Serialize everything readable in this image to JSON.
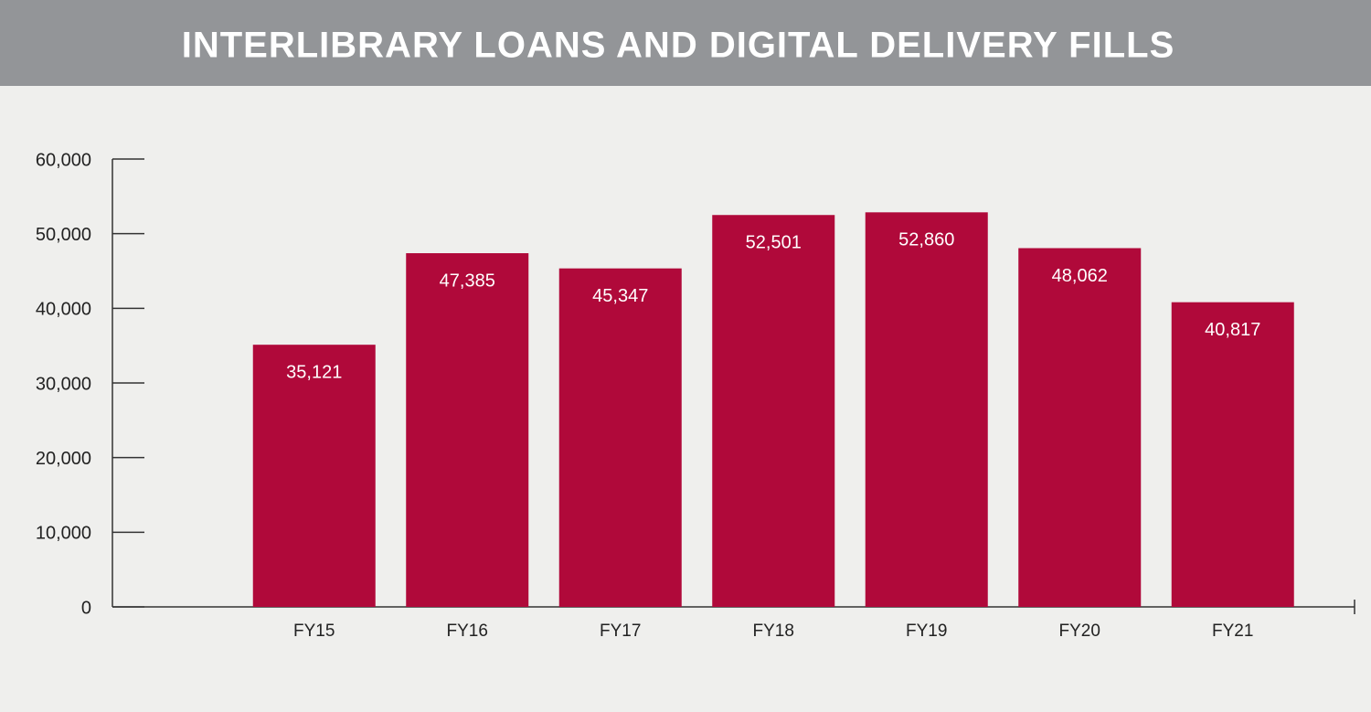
{
  "chart_data": {
    "type": "bar",
    "title": "INTERLIBRARY LOANS AND DIGITAL DELIVERY FILLS",
    "categories": [
      "FY15",
      "FY16",
      "FY17",
      "FY18",
      "FY19",
      "FY20",
      "FY21"
    ],
    "values": [
      35121,
      47385,
      45347,
      52501,
      52860,
      48062,
      40817
    ],
    "value_labels": [
      "35,121",
      "47,385",
      "45,347",
      "52,501",
      "52,860",
      "48,062",
      "40,817"
    ],
    "color": "#b0093a",
    "ylim": [
      0,
      60000
    ],
    "yticks": [
      0,
      {
        "value": 10000,
        "label": "10,000"
      },
      {
        "value": 20000,
        "label": "20,000"
      },
      {
        "value": 30000,
        "label": "30,000"
      },
      {
        "value": 40000,
        "label": "40,000"
      },
      {
        "value": 50000,
        "label": "50,000"
      },
      {
        "value": 60000,
        "label": "60,000"
      }
    ],
    "grid": false
  }
}
